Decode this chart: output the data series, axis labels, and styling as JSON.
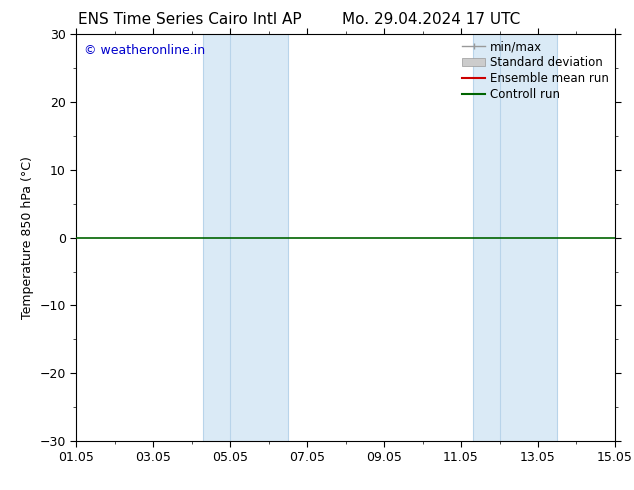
{
  "title_left": "ENS Time Series Cairo Intl AP",
  "title_right": "Mo. 29.04.2024 17 UTC",
  "ylabel": "Temperature 850 hPa (°C)",
  "ylim": [
    -30,
    30
  ],
  "yticks": [
    -30,
    -20,
    -10,
    0,
    10,
    20,
    30
  ],
  "xlim": [
    0,
    14
  ],
  "xtick_positions": [
    0,
    2,
    4,
    6,
    8,
    10,
    12,
    14
  ],
  "xtick_labels": [
    "01.05",
    "03.05",
    "05.05",
    "07.05",
    "09.05",
    "11.05",
    "13.05",
    "15.05"
  ],
  "shade_bands": [
    {
      "xmin": 3.33,
      "xmax": 3.83
    },
    {
      "xmin": 4.17,
      "xmax": 5.5
    },
    {
      "xmin": 10.33,
      "xmax": 10.83
    },
    {
      "xmin": 11.17,
      "xmax": 12.5
    }
  ],
  "shade_color": "#daeaf6",
  "shade_edge_color": "#b8d4ea",
  "control_run_color": "#006400",
  "ensemble_mean_color": "#cc0000",
  "background_color": "#ffffff",
  "copyright_text": "© weatheronline.in",
  "copyright_color": "#0000cc",
  "legend_labels": [
    "min/max",
    "Standard deviation",
    "Ensemble mean run",
    "Controll run"
  ],
  "title_fontsize": 11,
  "label_fontsize": 9,
  "tick_fontsize": 9,
  "legend_fontsize": 8.5
}
